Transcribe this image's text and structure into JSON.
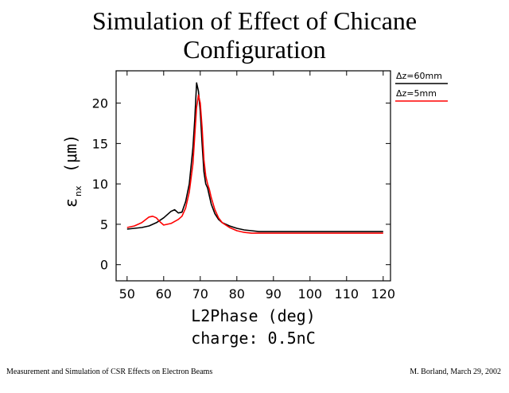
{
  "slide": {
    "title_line1": "Simulation of Effect of Chicane",
    "title_line2": "Configuration",
    "footer_left": "Measurement and Simulation of CSR Effects on Electron Beams",
    "footer_right": "M. Borland, March 29, 2002"
  },
  "chart_data": {
    "type": "line",
    "title": "",
    "xlabel": "L2Phase (deg)",
    "xlabel_line2": "charge: 0.5nC",
    "ylabel": "ε",
    "ylabel_sub": "nx",
    "ylabel_units": "(μm)",
    "xlim": [
      47,
      122
    ],
    "ylim": [
      -2,
      24
    ],
    "xticks": [
      50,
      60,
      70,
      80,
      90,
      100,
      110,
      120
    ],
    "yticks": [
      0,
      5,
      10,
      15,
      20
    ],
    "legend_position": "top-right",
    "series": [
      {
        "name": "Δz=60mm",
        "color": "#000000",
        "x": [
          50,
          52,
          54,
          56,
          58,
          60,
          62,
          63,
          64,
          65,
          66,
          67,
          68,
          68.5,
          69,
          69.5,
          70,
          70.5,
          71,
          71.5,
          72,
          72.5,
          73,
          74,
          75,
          76,
          78,
          80,
          82,
          84,
          86,
          90,
          100,
          110,
          120
        ],
        "y": [
          4.4,
          4.5,
          4.6,
          4.8,
          5.2,
          5.8,
          6.6,
          6.8,
          6.4,
          6.5,
          7.8,
          10.0,
          14.5,
          18.0,
          22.5,
          21.5,
          19.0,
          15.0,
          11.5,
          10.0,
          9.5,
          8.5,
          7.5,
          6.3,
          5.6,
          5.2,
          4.8,
          4.5,
          4.3,
          4.2,
          4.1,
          4.1,
          4.1,
          4.1,
          4.1
        ]
      },
      {
        "name": "Δz=5mm",
        "color": "#ff0000",
        "x": [
          50,
          52,
          54,
          56,
          57,
          58,
          59,
          60,
          61,
          62,
          64,
          65,
          66,
          67,
          68,
          68.5,
          69,
          69.5,
          70,
          70.5,
          71,
          71.5,
          72,
          72.5,
          73,
          74,
          75,
          76,
          78,
          80,
          82,
          84,
          86,
          90,
          100,
          110,
          120
        ],
        "y": [
          4.6,
          4.8,
          5.2,
          5.9,
          6.0,
          5.8,
          5.3,
          4.9,
          5.0,
          5.1,
          5.6,
          6.0,
          7.0,
          9.0,
          12.5,
          16.0,
          19.5,
          21.0,
          20.0,
          17.0,
          13.0,
          11.0,
          10.0,
          9.3,
          8.3,
          6.8,
          5.8,
          5.2,
          4.6,
          4.2,
          4.0,
          3.9,
          3.9,
          3.9,
          3.9,
          3.9,
          3.9
        ]
      }
    ]
  }
}
